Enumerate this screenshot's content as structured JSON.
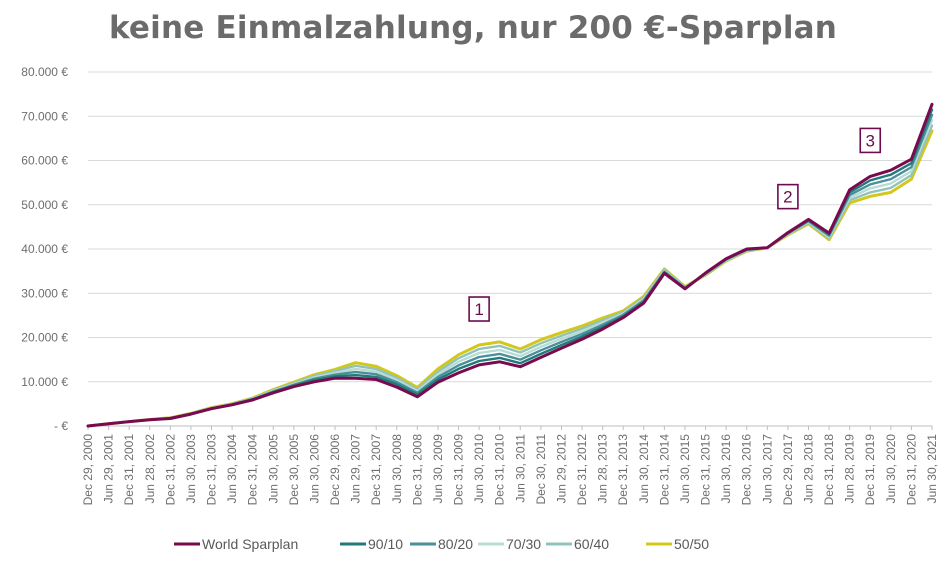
{
  "chart_data": {
    "type": "line",
    "title": "keine Einmalzahlung, nur 200 €-Sparplan",
    "xlabel": "",
    "ylabel": "",
    "ylim": [
      0,
      80000
    ],
    "grid": "horizontal",
    "legend_position": "bottom",
    "yticks": [
      "- €",
      "10.000 €",
      "20.000 €",
      "30.000 €",
      "40.000 €",
      "50.000 €",
      "60.000 €",
      "70.000 €",
      "80.000 €"
    ],
    "x_tick_labels": [
      "Dec 29, 2000",
      "Jun 29, 2001",
      "Dec 31, 2001",
      "Jun 28, 2002",
      "Dec 31, 2002",
      "Jun 30, 2003",
      "Dec 31, 2003",
      "Jun 30, 2004",
      "Dec 31, 2004",
      "Jun 30, 2005",
      "Dec 30, 2005",
      "Jun 30, 2006",
      "Dec 29, 2006",
      "Jun 29, 2007",
      "Dec 31, 2007",
      "Jun 30, 2008",
      "Dec 31, 2008",
      "Jun 30, 2009",
      "Dec 31, 2009",
      "Jun 30, 2010",
      "Dec 31, 2010",
      "Jun 30, 2011",
      "Dec 30, 2011",
      "Jun 29, 2012",
      "Dec 31, 2012",
      "Jun 28, 2013",
      "Dec 31, 2013",
      "Jun 30, 2014",
      "Dec 31, 2014",
      "Jun 30, 2015",
      "Dec 31, 2015",
      "Jun 30, 2016",
      "Dec 30, 2016",
      "Jun 30, 2017",
      "Dec 29, 2017",
      "Jun 29, 2018",
      "Dec 31, 2018",
      "Jun 28, 2019",
      "Dec 31, 2019",
      "Jun 30, 2020",
      "Dec 31, 2020",
      "Jun 30, 2021"
    ],
    "x": [
      "Dec 29, 2000",
      "Jun 29, 2001",
      "Dec 31, 2001",
      "Jun 28, 2002",
      "Dec 31, 2002",
      "Jun 30, 2003",
      "Dec 31, 2003",
      "Jun 30, 2004",
      "Dec 31, 2004",
      "Jun 30, 2005",
      "Dec 30, 2005",
      "Jun 30, 2006",
      "Dec 29, 2006",
      "Jun 29, 2007",
      "Dec 31, 2007",
      "Jun 30, 2008",
      "Dec 31, 2008",
      "Jun 30, 2009",
      "Dec 31, 2009",
      "Jun 30, 2010",
      "Dec 31, 2010",
      "Jun 30, 2011",
      "Dec 30, 2011",
      "Jun 29, 2012",
      "Dec 31, 2012",
      "Jun 28, 2013",
      "Dec 31, 2013",
      "Jun 30, 2014",
      "Dec 31, 2014",
      "Jun 30, 2015",
      "Dec 31, 2015",
      "Jun 30, 2016",
      "Dec 30, 2016",
      "Jun 30, 2017",
      "Dec 29, 2017",
      "Jun 29, 2018",
      "Dec 31, 2018",
      "Jun 28, 2019",
      "Dec 31, 2019",
      "Jun 30, 2020",
      "Dec 31, 2020",
      "Jun 30, 2021"
    ],
    "series": [
      {
        "name": "World Sparplan",
        "color": "#7a0a4f",
        "values": [
          0,
          500,
          1000,
          1400,
          1700,
          2700,
          3900,
          4800,
          5900,
          7500,
          8900,
          10000,
          10800,
          10800,
          10500,
          8800,
          6600,
          9900,
          12000,
          13800,
          14500,
          13400,
          15500,
          17600,
          19600,
          21900,
          24500,
          27800,
          34500,
          31000,
          34600,
          37800,
          40000,
          40300,
          43700,
          46700,
          43600,
          53400,
          56400,
          57800,
          60300,
          72700
        ]
      },
      {
        "name": "90/10",
        "color": "#1f7a78",
        "values": [
          0,
          500,
          1000,
          1400,
          1750,
          2750,
          3950,
          4850,
          6000,
          7650,
          9100,
          10400,
          11200,
          11500,
          11100,
          9400,
          7100,
          10500,
          12900,
          14700,
          15400,
          14200,
          16300,
          18300,
          20200,
          22400,
          24800,
          28100,
          34700,
          31100,
          34500,
          37700,
          39900,
          40300,
          43600,
          46500,
          43300,
          52800,
          55500,
          56800,
          59400,
          71500
        ]
      },
      {
        "name": "80/20",
        "color": "#4a8f9a",
        "values": [
          0,
          500,
          1000,
          1420,
          1780,
          2780,
          4000,
          4900,
          6080,
          7800,
          9300,
          10700,
          11600,
          12200,
          11700,
          9900,
          7500,
          11100,
          13700,
          15600,
          16300,
          15000,
          17100,
          19000,
          20800,
          22900,
          25100,
          28400,
          34900,
          31200,
          34400,
          37600,
          39800,
          40300,
          43500,
          46300,
          43000,
          52200,
          54600,
          55800,
          58500,
          70300
        ]
      },
      {
        "name": "70/30",
        "color": "#b7dcd3",
        "values": [
          0,
          500,
          1000,
          1430,
          1800,
          2800,
          4050,
          4950,
          6150,
          7950,
          9500,
          11000,
          12000,
          12900,
          12300,
          10400,
          7900,
          11700,
          14500,
          16500,
          17200,
          15800,
          17900,
          19700,
          21400,
          23400,
          25400,
          28700,
          35100,
          31300,
          34300,
          37500,
          39700,
          40300,
          43400,
          46100,
          42700,
          51600,
          53700,
          54800,
          57600,
          69100
        ]
      },
      {
        "name": "60/40",
        "color": "#8fc3bc",
        "values": [
          0,
          500,
          1000,
          1450,
          1820,
          2820,
          4100,
          5000,
          6230,
          8100,
          9700,
          11300,
          12400,
          13600,
          12900,
          10900,
          8300,
          12300,
          15300,
          17400,
          18100,
          16600,
          18700,
          20400,
          22000,
          23900,
          25700,
          29000,
          35300,
          31400,
          34200,
          37400,
          39600,
          40300,
          43300,
          45900,
          42400,
          51000,
          52800,
          53800,
          56700,
          67900
        ]
      },
      {
        "name": "50/50",
        "color": "#d4c71c",
        "values": [
          0,
          500,
          1000,
          1470,
          1850,
          2850,
          4150,
          5050,
          6300,
          8250,
          9900,
          11600,
          12800,
          14300,
          13500,
          11400,
          8700,
          12900,
          16100,
          18300,
          19000,
          17400,
          19500,
          21100,
          22600,
          24400,
          26000,
          29300,
          35500,
          31500,
          34100,
          37300,
          39500,
          40300,
          43200,
          45700,
          42100,
          50400,
          51900,
          52800,
          55800,
          66700
        ]
      }
    ],
    "annotations": [
      {
        "label": "1",
        "x": "Jun 30, 2010"
      },
      {
        "label": "2",
        "x": "Dec 29, 2017"
      },
      {
        "label": "3",
        "x": "Dec 31, 2019"
      }
    ]
  }
}
